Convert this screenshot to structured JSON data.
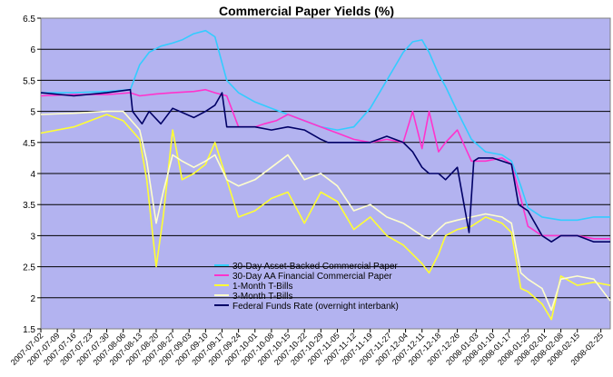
{
  "chart_data": {
    "type": "line",
    "title": "Commercial Paper Yields (%)",
    "xlabel": "",
    "ylabel": "",
    "ylim": [
      1.5,
      6.5
    ],
    "yticks": [
      1.5,
      2,
      2.5,
      3,
      3.5,
      4,
      4.5,
      5,
      5.5,
      6,
      6.5
    ],
    "ytick_labels": [
      "1.5",
      "2",
      "2.5",
      "3",
      "3.5",
      "4",
      "4.5",
      "5",
      "5.5",
      "6",
      "6.5"
    ],
    "x_start": "2007-07-02",
    "x_end": "2008-02-29",
    "xtick_labels": [
      "2007-07-02",
      "2007-07-09",
      "2007-07-16",
      "2007-07-23",
      "2007-07-30",
      "2007-08-06",
      "2007-08-13",
      "2007-08-20",
      "2007-08-27",
      "2007-09-03",
      "2007-09-10",
      "2007-09-17",
      "2007-09-24",
      "2007-10-01",
      "2007-10-08",
      "2007-10-15",
      "2007-10-22",
      "2007-10-29",
      "2007-11-05",
      "2007-11-12",
      "2007-11-19",
      "2007-11-27",
      "2007-12-04",
      "2007-12-11",
      "2007-12-18",
      "2007-12-26",
      "2008-01-03",
      "2008-01-10",
      "2008-01-17",
      "2008-01-25",
      "2008-02-01",
      "2008-02-08",
      "2008-02-15",
      "2008-02-25"
    ],
    "grid": "horizontal",
    "legend_position": "lower-left",
    "plot_background": "#b3b3f0",
    "series": [
      {
        "name": "30-Day Asset-Backed Commercial Paper",
        "color": "#33ccff",
        "x": [
          "2007-07-02",
          "2007-07-16",
          "2007-07-30",
          "2007-08-09",
          "2007-08-13",
          "2007-08-17",
          "2007-08-22",
          "2007-08-27",
          "2007-08-31",
          "2007-09-05",
          "2007-09-10",
          "2007-09-14",
          "2007-09-19",
          "2007-09-24",
          "2007-10-01",
          "2007-10-08",
          "2007-10-15",
          "2007-10-22",
          "2007-10-29",
          "2007-11-05",
          "2007-11-12",
          "2007-11-19",
          "2007-11-26",
          "2007-12-03",
          "2007-12-07",
          "2007-12-11",
          "2007-12-14",
          "2007-12-18",
          "2007-12-21",
          "2007-12-26",
          "2008-01-01",
          "2008-01-07",
          "2008-01-14",
          "2008-01-18",
          "2008-01-22",
          "2008-01-25",
          "2008-01-31",
          "2008-02-08",
          "2008-02-15",
          "2008-02-22",
          "2008-02-29"
        ],
        "values": [
          5.3,
          5.3,
          5.32,
          5.35,
          5.75,
          5.95,
          6.05,
          6.1,
          6.15,
          6.25,
          6.3,
          6.2,
          5.5,
          5.3,
          5.15,
          5.05,
          4.95,
          4.85,
          4.75,
          4.7,
          4.75,
          5.05,
          5.5,
          5.95,
          6.12,
          6.15,
          5.95,
          5.6,
          5.4,
          5.0,
          4.55,
          4.35,
          4.3,
          4.2,
          3.8,
          3.45,
          3.3,
          3.25,
          3.25,
          3.3,
          3.3
        ]
      },
      {
        "name": "30-Day AA Financial Commercial Paper",
        "color": "#ff33cc",
        "x": [
          "2007-07-02",
          "2007-07-16",
          "2007-07-30",
          "2007-08-09",
          "2007-08-13",
          "2007-08-20",
          "2007-08-27",
          "2007-09-05",
          "2007-09-10",
          "2007-09-14",
          "2007-09-19",
          "2007-09-24",
          "2007-10-01",
          "2007-10-05",
          "2007-10-10",
          "2007-10-15",
          "2007-10-22",
          "2007-10-29",
          "2007-11-05",
          "2007-11-12",
          "2007-11-19",
          "2007-11-26",
          "2007-12-03",
          "2007-12-05",
          "2007-12-07",
          "2007-12-11",
          "2007-12-14",
          "2007-12-18",
          "2007-12-21",
          "2007-12-26",
          "2008-01-01",
          "2008-01-07",
          "2008-01-14",
          "2008-01-18",
          "2008-01-22",
          "2008-01-25",
          "2008-01-31",
          "2008-02-08",
          "2008-02-15",
          "2008-02-22",
          "2008-02-29"
        ],
        "values": [
          5.25,
          5.27,
          5.27,
          5.3,
          5.25,
          5.28,
          5.3,
          5.32,
          5.35,
          5.3,
          5.25,
          4.75,
          4.75,
          4.8,
          4.85,
          4.95,
          4.85,
          4.75,
          4.65,
          4.55,
          4.5,
          4.55,
          4.5,
          4.75,
          5.0,
          4.4,
          5.0,
          4.35,
          4.5,
          4.7,
          4.2,
          4.2,
          4.25,
          4.15,
          3.6,
          3.15,
          3.0,
          3.0,
          3.0,
          2.95,
          2.95
        ]
      },
      {
        "name": "1-Month T-Bills",
        "color": "#ffff33",
        "x": [
          "2007-07-02",
          "2007-07-16",
          "2007-07-30",
          "2007-08-06",
          "2007-08-13",
          "2007-08-16",
          "2007-08-20",
          "2007-08-23",
          "2007-08-27",
          "2007-08-31",
          "2007-09-05",
          "2007-09-10",
          "2007-09-14",
          "2007-09-19",
          "2007-09-24",
          "2007-10-01",
          "2007-10-08",
          "2007-10-15",
          "2007-10-22",
          "2007-10-29",
          "2007-11-05",
          "2007-11-12",
          "2007-11-19",
          "2007-11-26",
          "2007-12-03",
          "2007-12-07",
          "2007-12-11",
          "2007-12-14",
          "2007-12-18",
          "2007-12-21",
          "2007-12-26",
          "2008-01-01",
          "2008-01-07",
          "2008-01-14",
          "2008-01-18",
          "2008-01-22",
          "2008-01-25",
          "2008-01-31",
          "2008-02-04",
          "2008-02-08",
          "2008-02-15",
          "2008-02-22",
          "2008-02-29"
        ],
        "values": [
          4.65,
          4.75,
          4.95,
          4.85,
          4.55,
          3.9,
          2.5,
          3.3,
          4.7,
          3.9,
          4.0,
          4.15,
          4.5,
          3.9,
          3.3,
          3.4,
          3.6,
          3.7,
          3.2,
          3.7,
          3.55,
          3.1,
          3.3,
          3.0,
          2.85,
          2.7,
          2.55,
          2.4,
          2.7,
          3.0,
          3.1,
          3.15,
          3.3,
          3.2,
          3.05,
          2.15,
          2.1,
          1.9,
          1.65,
          2.35,
          2.2,
          2.25,
          2.2
        ]
      },
      {
        "name": "3-Month T-Bills",
        "color": "#ffffcc",
        "x": [
          "2007-07-02",
          "2007-07-16",
          "2007-07-30",
          "2007-08-06",
          "2007-08-13",
          "2007-08-16",
          "2007-08-20",
          "2007-08-23",
          "2007-08-27",
          "2007-08-31",
          "2007-09-05",
          "2007-09-10",
          "2007-09-14",
          "2007-09-19",
          "2007-09-24",
          "2007-10-01",
          "2007-10-08",
          "2007-10-15",
          "2007-10-22",
          "2007-10-29",
          "2007-11-05",
          "2007-11-12",
          "2007-11-19",
          "2007-11-26",
          "2007-12-03",
          "2007-12-07",
          "2007-12-11",
          "2007-12-14",
          "2007-12-18",
          "2007-12-21",
          "2007-12-26",
          "2008-01-01",
          "2008-01-07",
          "2008-01-14",
          "2008-01-18",
          "2008-01-22",
          "2008-01-25",
          "2008-01-31",
          "2008-02-04",
          "2008-02-08",
          "2008-02-15",
          "2008-02-22",
          "2008-02-29"
        ],
        "values": [
          4.95,
          4.97,
          5.0,
          5.0,
          4.7,
          4.2,
          3.2,
          3.7,
          4.3,
          4.2,
          4.1,
          4.2,
          4.3,
          3.9,
          3.8,
          3.9,
          4.1,
          4.3,
          3.9,
          4.0,
          3.8,
          3.4,
          3.5,
          3.3,
          3.2,
          3.1,
          3.0,
          2.95,
          3.1,
          3.2,
          3.25,
          3.3,
          3.35,
          3.3,
          3.2,
          2.4,
          2.3,
          2.15,
          1.8,
          2.3,
          2.35,
          2.3,
          1.95
        ]
      },
      {
        "name": "Federal Funds Rate (overnight interbank)",
        "color": "#000066",
        "x": [
          "2007-07-02",
          "2007-07-16",
          "2007-07-30",
          "2007-08-09",
          "2007-08-10",
          "2007-08-14",
          "2007-08-17",
          "2007-08-22",
          "2007-08-27",
          "2007-09-05",
          "2007-09-10",
          "2007-09-14",
          "2007-09-17",
          "2007-09-19",
          "2007-09-24",
          "2007-10-01",
          "2007-10-08",
          "2007-10-15",
          "2007-10-22",
          "2007-10-29",
          "2007-11-01",
          "2007-11-05",
          "2007-11-12",
          "2007-11-19",
          "2007-11-26",
          "2007-12-03",
          "2007-12-07",
          "2007-12-11",
          "2007-12-14",
          "2007-12-18",
          "2007-12-21",
          "2007-12-26",
          "2007-12-31",
          "2008-01-02",
          "2008-01-04",
          "2008-01-10",
          "2008-01-18",
          "2008-01-21",
          "2008-01-25",
          "2008-01-31",
          "2008-02-04",
          "2008-02-08",
          "2008-02-15",
          "2008-02-22",
          "2008-02-29"
        ],
        "values": [
          5.3,
          5.25,
          5.3,
          5.35,
          5.0,
          4.8,
          5.0,
          4.8,
          5.05,
          4.9,
          5.0,
          5.1,
          5.3,
          4.75,
          4.75,
          4.75,
          4.7,
          4.75,
          4.7,
          4.55,
          4.5,
          4.5,
          4.5,
          4.5,
          4.6,
          4.5,
          4.35,
          4.1,
          4.0,
          4.0,
          3.9,
          4.1,
          3.05,
          4.2,
          4.25,
          4.25,
          4.15,
          3.5,
          3.4,
          3.0,
          2.9,
          3.0,
          3.0,
          2.9,
          2.9
        ]
      }
    ]
  }
}
